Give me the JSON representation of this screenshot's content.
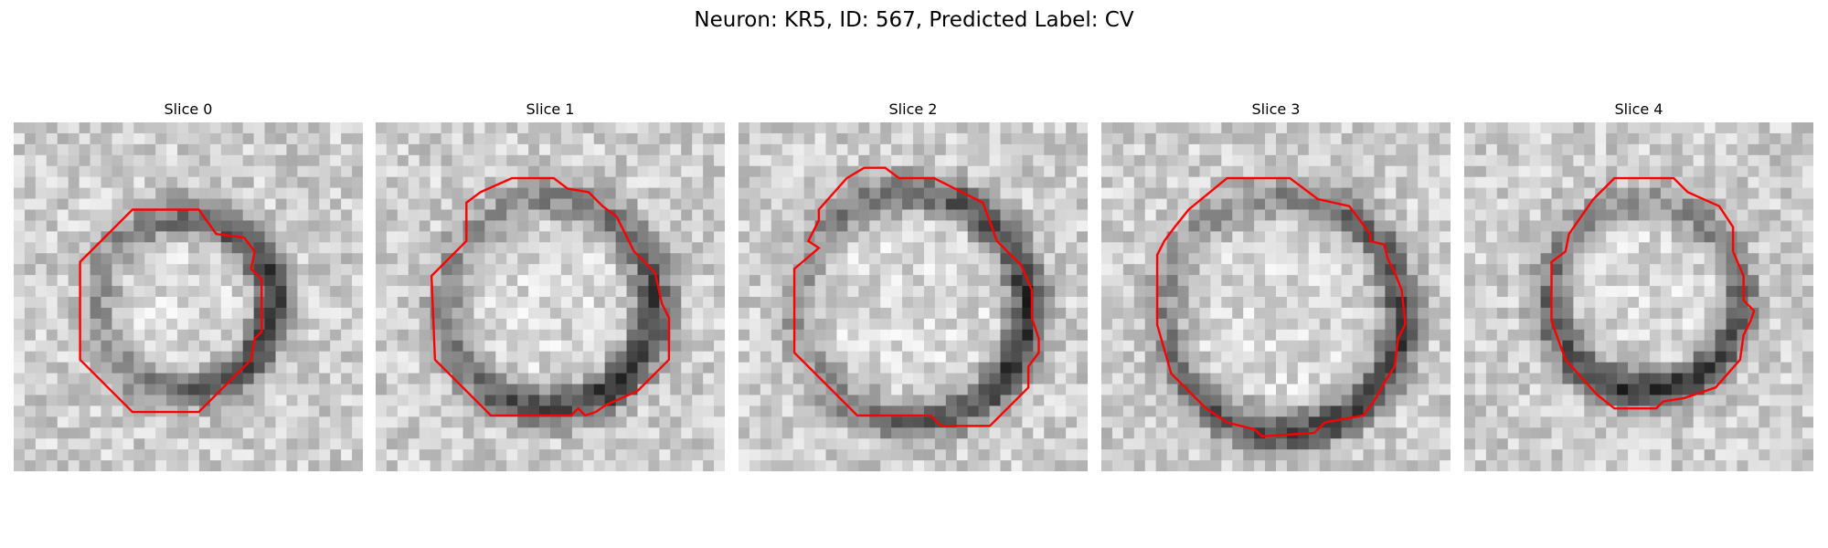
{
  "figure_title": "Neuron: KR5, ID: 567, Predicted Label: CV",
  "outline_color": "#ff0000",
  "panels": [
    {
      "title": "Slice 0",
      "seed": 11,
      "ring_center": [
        0.49,
        0.52
      ],
      "ring_radius": 0.25,
      "dark_side": "right",
      "outline": [
        [
          0.34,
          0.25
        ],
        [
          0.53,
          0.25
        ],
        [
          0.58,
          0.32
        ],
        [
          0.66,
          0.33
        ],
        [
          0.69,
          0.37
        ],
        [
          0.68,
          0.42
        ],
        [
          0.71,
          0.45
        ],
        [
          0.71,
          0.6
        ],
        [
          0.69,
          0.62
        ],
        [
          0.68,
          0.68
        ],
        [
          0.53,
          0.83
        ],
        [
          0.34,
          0.83
        ],
        [
          0.19,
          0.68
        ],
        [
          0.19,
          0.4
        ]
      ]
    },
    {
      "title": "Slice 1",
      "seed": 23,
      "ring_center": [
        0.5,
        0.52
      ],
      "ring_radius": 0.3,
      "dark_side": "bottom-right",
      "outline": [
        [
          0.3,
          0.2
        ],
        [
          0.39,
          0.16
        ],
        [
          0.51,
          0.16
        ],
        [
          0.55,
          0.19
        ],
        [
          0.61,
          0.2
        ],
        [
          0.65,
          0.24
        ],
        [
          0.69,
          0.27
        ],
        [
          0.74,
          0.37
        ],
        [
          0.8,
          0.43
        ],
        [
          0.82,
          0.52
        ],
        [
          0.84,
          0.56
        ],
        [
          0.84,
          0.68
        ],
        [
          0.75,
          0.77
        ],
        [
          0.66,
          0.81
        ],
        [
          0.63,
          0.83
        ],
        [
          0.6,
          0.84
        ],
        [
          0.58,
          0.82
        ],
        [
          0.56,
          0.84
        ],
        [
          0.33,
          0.84
        ],
        [
          0.17,
          0.68
        ],
        [
          0.16,
          0.44
        ],
        [
          0.26,
          0.34
        ],
        [
          0.26,
          0.23
        ]
      ]
    },
    {
      "title": "Slice 2",
      "seed": 37,
      "ring_center": [
        0.5,
        0.53
      ],
      "ring_radius": 0.33,
      "dark_side": "right",
      "outline": [
        [
          0.31,
          0.16
        ],
        [
          0.36,
          0.13
        ],
        [
          0.42,
          0.13
        ],
        [
          0.46,
          0.16
        ],
        [
          0.56,
          0.16
        ],
        [
          0.7,
          0.23
        ],
        [
          0.74,
          0.34
        ],
        [
          0.81,
          0.41
        ],
        [
          0.84,
          0.48
        ],
        [
          0.84,
          0.56
        ],
        [
          0.86,
          0.62
        ],
        [
          0.86,
          0.66
        ],
        [
          0.83,
          0.7
        ],
        [
          0.83,
          0.76
        ],
        [
          0.72,
          0.87
        ],
        [
          0.58,
          0.87
        ],
        [
          0.55,
          0.84
        ],
        [
          0.34,
          0.84
        ],
        [
          0.16,
          0.66
        ],
        [
          0.16,
          0.42
        ],
        [
          0.23,
          0.36
        ],
        [
          0.2,
          0.34
        ],
        [
          0.23,
          0.28
        ],
        [
          0.23,
          0.25
        ]
      ]
    },
    {
      "title": "Slice 3",
      "seed": 53,
      "ring_center": [
        0.52,
        0.55
      ],
      "ring_radius": 0.34,
      "dark_side": "bottom-right",
      "outline": [
        [
          0.36,
          0.16
        ],
        [
          0.54,
          0.16
        ],
        [
          0.62,
          0.22
        ],
        [
          0.71,
          0.24
        ],
        [
          0.77,
          0.32
        ],
        [
          0.77,
          0.34
        ],
        [
          0.81,
          0.35
        ],
        [
          0.82,
          0.39
        ],
        [
          0.84,
          0.43
        ],
        [
          0.86,
          0.48
        ],
        [
          0.87,
          0.57
        ],
        [
          0.87,
          0.58
        ],
        [
          0.85,
          0.62
        ],
        [
          0.84,
          0.7
        ],
        [
          0.82,
          0.73
        ],
        [
          0.78,
          0.8
        ],
        [
          0.75,
          0.84
        ],
        [
          0.64,
          0.86
        ],
        [
          0.61,
          0.89
        ],
        [
          0.46,
          0.9
        ],
        [
          0.44,
          0.88
        ],
        [
          0.36,
          0.86
        ],
        [
          0.3,
          0.82
        ],
        [
          0.2,
          0.72
        ],
        [
          0.18,
          0.65
        ],
        [
          0.16,
          0.58
        ],
        [
          0.16,
          0.38
        ],
        [
          0.18,
          0.34
        ],
        [
          0.21,
          0.3
        ],
        [
          0.25,
          0.25
        ]
      ]
    },
    {
      "title": "Slice 4",
      "seed": 71,
      "ring_center": [
        0.52,
        0.5
      ],
      "ring_radius": 0.27,
      "dark_side": "bottom",
      "outline": [
        [
          0.43,
          0.16
        ],
        [
          0.6,
          0.16
        ],
        [
          0.64,
          0.2
        ],
        [
          0.73,
          0.24
        ],
        [
          0.77,
          0.3
        ],
        [
          0.77,
          0.37
        ],
        [
          0.8,
          0.44
        ],
        [
          0.8,
          0.51
        ],
        [
          0.83,
          0.54
        ],
        [
          0.82,
          0.57
        ],
        [
          0.8,
          0.61
        ],
        [
          0.79,
          0.68
        ],
        [
          0.72,
          0.76
        ],
        [
          0.63,
          0.79
        ],
        [
          0.57,
          0.8
        ],
        [
          0.55,
          0.82
        ],
        [
          0.43,
          0.82
        ],
        [
          0.38,
          0.78
        ],
        [
          0.29,
          0.68
        ],
        [
          0.25,
          0.57
        ],
        [
          0.25,
          0.4
        ],
        [
          0.29,
          0.37
        ],
        [
          0.3,
          0.32
        ],
        [
          0.37,
          0.22
        ]
      ]
    }
  ]
}
